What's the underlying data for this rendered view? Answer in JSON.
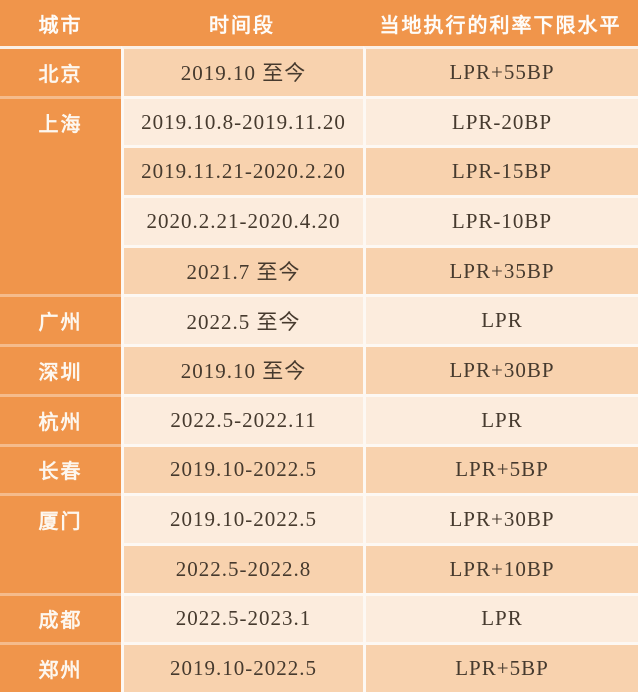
{
  "chart_data": {
    "type": "table",
    "columns": [
      "城市",
      "时间段",
      "当地执行的利率下限水平"
    ],
    "groups": [
      {
        "city": "北京",
        "rows": [
          {
            "period": "2019.10 至今",
            "rate": "LPR+55BP"
          }
        ]
      },
      {
        "city": "上海",
        "rows": [
          {
            "period": "2019.10.8-2019.11.20",
            "rate": "LPR-20BP"
          },
          {
            "period": "2019.11.21-2020.2.20",
            "rate": "LPR-15BP"
          },
          {
            "period": "2020.2.21-2020.4.20",
            "rate": "LPR-10BP"
          },
          {
            "period": "2021.7 至今",
            "rate": "LPR+35BP"
          }
        ]
      },
      {
        "city": "广州",
        "rows": [
          {
            "period": "2022.5 至今",
            "rate": "LPR"
          }
        ]
      },
      {
        "city": "深圳",
        "rows": [
          {
            "period": "2019.10 至今",
            "rate": "LPR+30BP"
          }
        ]
      },
      {
        "city": "杭州",
        "rows": [
          {
            "period": "2022.5-2022.11",
            "rate": "LPR"
          }
        ]
      },
      {
        "city": "长春",
        "rows": [
          {
            "period": "2019.10-2022.5",
            "rate": "LPR+5BP"
          }
        ]
      },
      {
        "city": "厦门",
        "rows": [
          {
            "period": "2019.10-2022.5",
            "rate": "LPR+30BP"
          },
          {
            "period": "2022.5-2022.8",
            "rate": "LPR+10BP"
          }
        ]
      },
      {
        "city": "成都",
        "rows": [
          {
            "period": "2022.5-2023.1",
            "rate": "LPR"
          }
        ]
      },
      {
        "city": "郑州",
        "rows": [
          {
            "period": "2019.10-2022.5",
            "rate": "LPR+5BP"
          }
        ]
      }
    ]
  },
  "colors": {
    "header_bg": "#F0954B",
    "city_bg": "#F0954B",
    "row_odd_bg": "#F8D2AE",
    "row_even_bg": "#FCECDD",
    "divider_light": "#FDF8F3",
    "divider_on_orange": "#F5BB8C",
    "header_divider": "#FBF0E6",
    "header_text": "#FEFCF9",
    "city_text": "#FDF7EF",
    "cell_text": "#463A2E"
  }
}
